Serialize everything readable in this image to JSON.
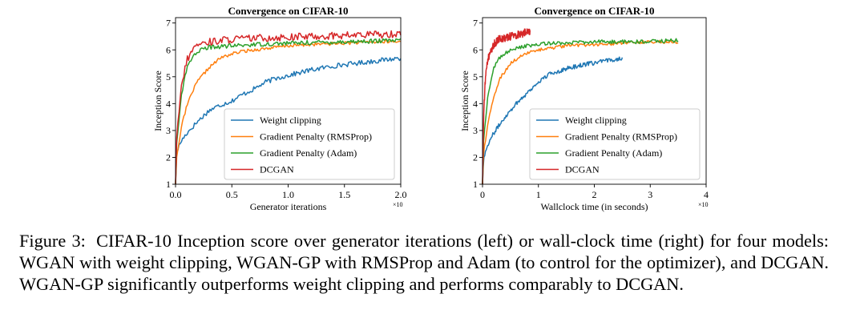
{
  "caption": {
    "label": "Figure 3:",
    "text": "CIFAR-10 Inception score over generator iterations (left) or wall-clock time (right) for four models: WGAN with weight clipping, WGAN-GP with RMSProp and Adam (to control for the optimizer), and DCGAN. WGAN-GP significantly outperforms weight clipping and performs comparably to DCGAN."
  },
  "chart_data": [
    {
      "type": "line",
      "title": "Convergence on CIFAR-10",
      "xlabel": "Generator iterations",
      "ylabel": "Inception Score",
      "x_multiplier": "×10",
      "xlim": [
        0,
        2.0
      ],
      "ylim": [
        1,
        7.2
      ],
      "xticks": [
        "0.0",
        "0.5",
        "1.0",
        "1.5",
        "2.0"
      ],
      "yticks": [
        "1",
        "2",
        "3",
        "4",
        "5",
        "6",
        "7"
      ],
      "legend_position": "lower-right",
      "series": [
        {
          "name": "Weight clipping",
          "color": "#1f77b4",
          "x_end": 2.0,
          "points": [
            [
              0,
              1.0
            ],
            [
              0.01,
              2.2
            ],
            [
              0.05,
              2.6
            ],
            [
              0.1,
              2.9
            ],
            [
              0.2,
              3.35
            ],
            [
              0.3,
              3.75
            ],
            [
              0.4,
              3.95
            ],
            [
              0.5,
              4.1
            ],
            [
              0.6,
              4.35
            ],
            [
              0.7,
              4.55
            ],
            [
              0.8,
              4.8
            ],
            [
              0.9,
              4.95
            ],
            [
              1.0,
              5.05
            ],
            [
              1.2,
              5.25
            ],
            [
              1.4,
              5.4
            ],
            [
              1.6,
              5.5
            ],
            [
              1.8,
              5.6
            ],
            [
              2.0,
              5.7
            ]
          ],
          "noise": 0.09
        },
        {
          "name": "Gradient Penalty (RMSProp)",
          "color": "#ff7f0e",
          "x_end": 2.0,
          "points": [
            [
              0,
              1.0
            ],
            [
              0.01,
              2.0
            ],
            [
              0.05,
              3.1
            ],
            [
              0.1,
              3.9
            ],
            [
              0.15,
              4.45
            ],
            [
              0.2,
              4.85
            ],
            [
              0.3,
              5.35
            ],
            [
              0.4,
              5.7
            ],
            [
              0.5,
              5.85
            ],
            [
              0.6,
              5.95
            ],
            [
              0.8,
              6.05
            ],
            [
              1.0,
              6.15
            ],
            [
              1.2,
              6.2
            ],
            [
              1.5,
              6.25
            ],
            [
              1.8,
              6.3
            ],
            [
              2.0,
              6.3
            ]
          ],
          "noise": 0.06
        },
        {
          "name": "Gradient Penalty (Adam)",
          "color": "#2ca02c",
          "x_end": 2.0,
          "points": [
            [
              0,
              1.0
            ],
            [
              0.01,
              2.5
            ],
            [
              0.05,
              4.3
            ],
            [
              0.1,
              5.3
            ],
            [
              0.15,
              5.75
            ],
            [
              0.2,
              5.95
            ],
            [
              0.3,
              6.1
            ],
            [
              0.5,
              6.15
            ],
            [
              0.7,
              6.2
            ],
            [
              1.0,
              6.25
            ],
            [
              1.5,
              6.3
            ],
            [
              2.0,
              6.35
            ]
          ],
          "noise": 0.08
        },
        {
          "name": "DCGAN",
          "color": "#d62728",
          "x_end": 2.0,
          "points": [
            [
              0,
              1.0
            ],
            [
              0.01,
              2.7
            ],
            [
              0.05,
              4.6
            ],
            [
              0.1,
              5.6
            ],
            [
              0.15,
              6.0
            ],
            [
              0.2,
              6.2
            ],
            [
              0.3,
              6.3
            ],
            [
              0.5,
              6.4
            ],
            [
              0.8,
              6.45
            ],
            [
              1.2,
              6.5
            ],
            [
              1.6,
              6.55
            ],
            [
              2.0,
              6.6
            ]
          ],
          "noise": 0.14
        }
      ]
    },
    {
      "type": "line",
      "title": "Convergence on CIFAR-10",
      "xlabel": "Wallclock time (in seconds)",
      "ylabel": "Inception Score",
      "x_multiplier": "×10",
      "xlim": [
        0,
        4
      ],
      "ylim": [
        1,
        7.2
      ],
      "xticks": [
        "0",
        "1",
        "2",
        "3",
        "4"
      ],
      "yticks": [
        "1",
        "2",
        "3",
        "4",
        "5",
        "6",
        "7"
      ],
      "legend_position": "lower-right",
      "series": [
        {
          "name": "Weight clipping",
          "color": "#1f77b4",
          "x_end": 2.5,
          "points": [
            [
              0,
              1.0
            ],
            [
              0.02,
              2.0
            ],
            [
              0.1,
              2.5
            ],
            [
              0.2,
              2.9
            ],
            [
              0.4,
              3.5
            ],
            [
              0.6,
              4.0
            ],
            [
              0.8,
              4.4
            ],
            [
              1.0,
              4.8
            ],
            [
              1.2,
              5.1
            ],
            [
              1.5,
              5.3
            ],
            [
              1.8,
              5.45
            ],
            [
              2.1,
              5.55
            ],
            [
              2.5,
              5.7
            ]
          ],
          "noise": 0.08
        },
        {
          "name": "Gradient Penalty (RMSProp)",
          "color": "#ff7f0e",
          "x_end": 3.5,
          "points": [
            [
              0,
              1.0
            ],
            [
              0.02,
              2.2
            ],
            [
              0.1,
              3.3
            ],
            [
              0.2,
              4.2
            ],
            [
              0.3,
              4.9
            ],
            [
              0.5,
              5.5
            ],
            [
              0.7,
              5.8
            ],
            [
              1.0,
              6.0
            ],
            [
              1.5,
              6.15
            ],
            [
              2.0,
              6.2
            ],
            [
              2.5,
              6.25
            ],
            [
              3.0,
              6.3
            ],
            [
              3.5,
              6.3
            ]
          ],
          "noise": 0.06
        },
        {
          "name": "Gradient Penalty (Adam)",
          "color": "#2ca02c",
          "x_end": 3.5,
          "points": [
            [
              0,
              1.0
            ],
            [
              0.02,
              2.7
            ],
            [
              0.1,
              4.4
            ],
            [
              0.2,
              5.3
            ],
            [
              0.3,
              5.7
            ],
            [
              0.5,
              6.0
            ],
            [
              0.8,
              6.15
            ],
            [
              1.2,
              6.25
            ],
            [
              2.0,
              6.3
            ],
            [
              2.8,
              6.3
            ],
            [
              3.5,
              6.35
            ]
          ],
          "noise": 0.07
        },
        {
          "name": "DCGAN",
          "color": "#d62728",
          "x_end": 0.85,
          "points": [
            [
              0,
              1.0
            ],
            [
              0.02,
              3.5
            ],
            [
              0.05,
              4.9
            ],
            [
              0.1,
              5.7
            ],
            [
              0.2,
              6.2
            ],
            [
              0.3,
              6.4
            ],
            [
              0.5,
              6.5
            ],
            [
              0.7,
              6.6
            ],
            [
              0.85,
              6.7
            ]
          ],
          "noise": 0.15
        }
      ]
    }
  ]
}
